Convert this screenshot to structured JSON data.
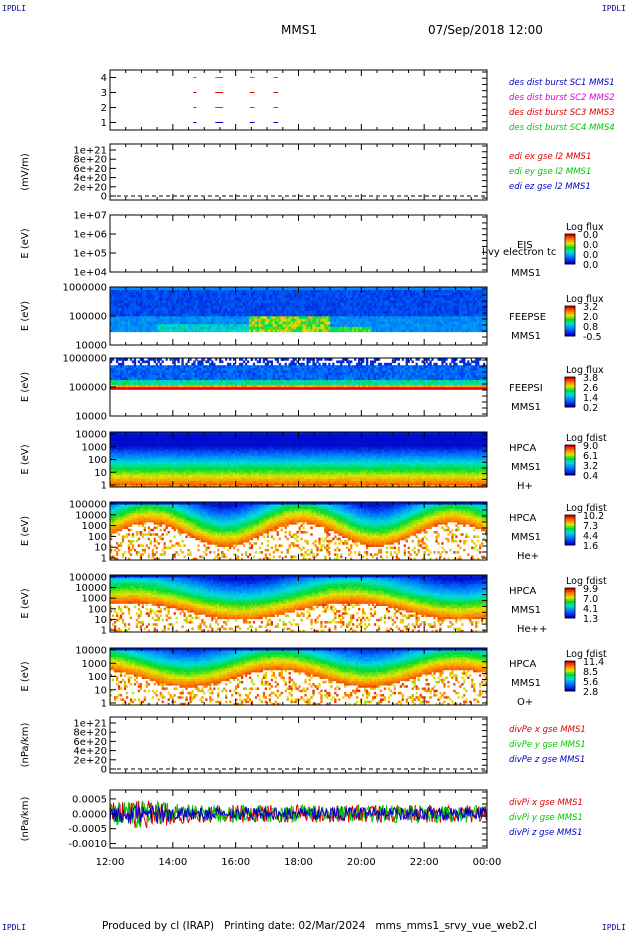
{
  "corners": {
    "tl": "IPDLI",
    "tr": "IPDLI",
    "bl": "IPDLI",
    "br": "IPDLI"
  },
  "header": {
    "spacecraft": "MMS1",
    "datetime": "07/Sep/2018 12:00"
  },
  "footer": "Produced by cl (IRAP)   Printing date: 02/Mar/2024   mms_mms1_srvy_vue_web2.cl",
  "colors": {
    "red": "#e00000",
    "green": "#00c800",
    "blue": "#0000c8",
    "magenta": "#e000e0",
    "black": "#000000"
  },
  "chart_data": [
    {
      "type": "line",
      "title": "",
      "ylabel": "",
      "yticks": [
        "1",
        "2",
        "3",
        "4"
      ],
      "ylim": [
        0.5,
        4.5
      ],
      "xlabel": "",
      "xticks": [
        "12:00",
        "14:00",
        "16:00",
        "18:00",
        "20:00",
        "22:00",
        "00:00"
      ],
      "xlim": [
        0,
        12
      ],
      "series": [
        {
          "name": "des dist burst SC1 MMS1",
          "color": "blue",
          "y": 1,
          "segments": [
            [
              2.65,
              2.75
            ],
            [
              3.35,
              3.6
            ],
            [
              4.45,
              4.6
            ],
            [
              5.2,
              5.35
            ]
          ]
        },
        {
          "name": "des dist burst SC2 MMS2",
          "color": "magenta",
          "y": 2,
          "segments": [
            [
              2.65,
              2.75
            ],
            [
              3.35,
              3.6
            ],
            [
              4.45,
              4.6
            ],
            [
              5.2,
              5.35
            ]
          ]
        },
        {
          "name": "des dist burst SC3 MMS3",
          "color": "red",
          "y": 3,
          "segments": [
            [
              2.65,
              2.75
            ],
            [
              3.35,
              3.6
            ],
            [
              4.45,
              4.6
            ],
            [
              5.2,
              5.35
            ]
          ]
        },
        {
          "name": "des dist burst SC4 MMS4",
          "color": "green",
          "y": 4,
          "segments": [
            [
              2.65,
              2.75
            ],
            [
              3.35,
              3.6
            ],
            [
              4.45,
              4.6
            ],
            [
              5.2,
              5.35
            ]
          ]
        }
      ]
    },
    {
      "type": "line",
      "ylabel": "(mV/m)",
      "yticks": [
        "0",
        "2e+20",
        "4e+20",
        "6e+20",
        "8e+20",
        "1e+21"
      ],
      "ylim": [
        0,
        1e+21
      ],
      "zero_line": true,
      "series": [
        {
          "name": "edi ex gse l2 MMS1",
          "color": "red"
        },
        {
          "name": "edi ey gse l2 MMS1",
          "color": "green"
        },
        {
          "name": "edi ez gse l2 MMS1",
          "color": "blue"
        }
      ]
    },
    {
      "type": "heatmap",
      "ylabel": "E (eV)",
      "scale": "log",
      "yticks": [
        "1e+04",
        "1e+05",
        "1e+06",
        "1e+07"
      ],
      "ylim": [
        10000.0,
        10000000.0
      ],
      "instrument": "EIS",
      "spacecraft": "MMS1",
      "extra_label": "l  vy electron tc",
      "colorbar": {
        "title": "Log flux",
        "ticks": [
          "0.0",
          "0.0",
          "0.0",
          "0.0"
        ]
      },
      "data": "empty"
    },
    {
      "type": "heatmap",
      "ylabel": "E (eV)",
      "scale": "log",
      "yticks": [
        "10000",
        "100000",
        "1000000"
      ],
      "ylim": [
        10000.0,
        1000000.0
      ],
      "instrument": "FEEPSE",
      "spacecraft": "MMS1",
      "colorbar": {
        "title": "Log flux",
        "ticks": [
          "3.2",
          "2.0",
          "0.8",
          "-0.5"
        ]
      },
      "data": "flux enhancement 16:30-19:00 at 20-60 keV; blue background 30-800 keV"
    },
    {
      "type": "heatmap",
      "ylabel": "E (eV)",
      "scale": "log",
      "yticks": [
        "10000",
        "100000",
        "1000000"
      ],
      "ylim": [
        10000.0,
        1000000.0
      ],
      "instrument": "FEEPSI",
      "spacecraft": "MMS1",
      "colorbar": {
        "title": "Log flux",
        "ticks": [
          "3.8",
          "2.6",
          "1.4",
          "0.2"
        ]
      },
      "data": "red band near 60 keV, blue above to ~500 keV"
    },
    {
      "type": "heatmap",
      "ylabel": "E (eV)",
      "scale": "log",
      "yticks": [
        "1",
        "10",
        "100",
        "1000",
        "10000"
      ],
      "ylim": [
        1,
        30000.0
      ],
      "instrument": "HPCA",
      "spacecraft": "MMS1",
      "species": "H+",
      "colorbar": {
        "title": "Log fdist",
        "ticks": [
          "9.0",
          "6.1",
          "3.2",
          "0.4"
        ]
      }
    },
    {
      "type": "heatmap",
      "ylabel": "E (eV)",
      "scale": "log",
      "yticks": [
        "1",
        "10",
        "100",
        "1000",
        "10000",
        "100000"
      ],
      "ylim": [
        1,
        100000.0
      ],
      "instrument": "HPCA",
      "spacecraft": "MMS1",
      "species": "He+",
      "colorbar": {
        "title": "Log fdist",
        "ticks": [
          "10.2",
          "7.3",
          "4.4",
          "1.6"
        ]
      }
    },
    {
      "type": "heatmap",
      "ylabel": "E (eV)",
      "scale": "log",
      "yticks": [
        "1",
        "10",
        "100",
        "1000",
        "10000",
        "100000"
      ],
      "ylim": [
        1,
        100000.0
      ],
      "instrument": "HPCA",
      "spacecraft": "MMS1",
      "species": "He++",
      "colorbar": {
        "title": "Log fdist",
        "ticks": [
          "9.9",
          "7.0",
          "4.1",
          "1.3"
        ]
      }
    },
    {
      "type": "heatmap",
      "ylabel": "E (eV)",
      "scale": "log",
      "yticks": [
        "1",
        "10",
        "100",
        "1000",
        "10000"
      ],
      "ylim": [
        1,
        20000.0
      ],
      "instrument": "HPCA",
      "spacecraft": "MMS1",
      "species": "O+",
      "colorbar": {
        "title": "Log fdist",
        "ticks": [
          "11.4",
          "8.5",
          "5.6",
          "2.8"
        ]
      }
    },
    {
      "type": "line",
      "ylabel": "(nPa/km)",
      "yticks": [
        "0",
        "2e+20",
        "4e+20",
        "6e+20",
        "8e+20",
        "1e+21"
      ],
      "ylim": [
        0,
        1e+21
      ],
      "zero_line": true,
      "series": [
        {
          "name": "divPe x gse MMS1",
          "color": "red"
        },
        {
          "name": "divPe y gse MMS1",
          "color": "green"
        },
        {
          "name": "divPe z gse MMS1",
          "color": "blue"
        }
      ]
    },
    {
      "type": "line",
      "ylabel": "(nPa/km)",
      "yticks": [
        "-0.0010",
        "-0.0005",
        "0.0000",
        "0.0005"
      ],
      "ylim": [
        -0.00115,
        0.0008
      ],
      "series": [
        {
          "name": "divPi x gse MMS1",
          "color": "red",
          "amplitude": 0.0003
        },
        {
          "name": "divPi y gse MMS1",
          "color": "green",
          "amplitude": 0.0003
        },
        {
          "name": "divPi z gse MMS1",
          "color": "blue",
          "amplitude": 0.00022
        }
      ]
    }
  ]
}
